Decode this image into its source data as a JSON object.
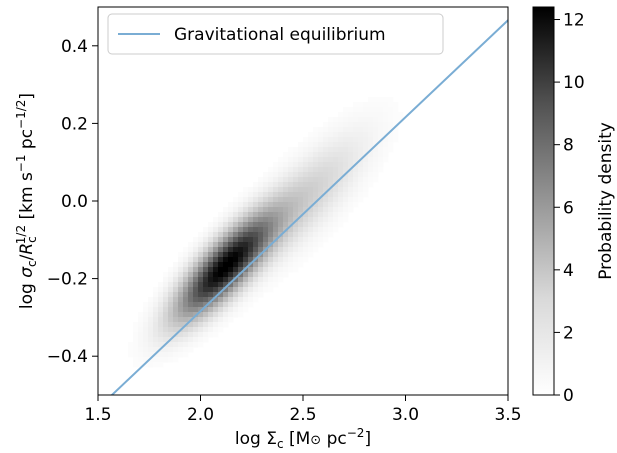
{
  "chart_data": {
    "type": "heatmap",
    "title": "",
    "xlabel": {
      "pre": "log Σ",
      "sub": "c",
      "mid": " [M",
      "odot": "⊙",
      "post": " pc",
      "sup": "−2",
      "end": "]"
    },
    "ylabel": {
      "pre": "log ",
      "sigma": "σ",
      "sub1": "c",
      "slash": "/",
      "R": "R",
      "sub2": "c",
      "sup2": "1/2",
      "mid": " [km s",
      "sup3": "−1",
      "pc": " pc",
      "sup4": "−1/2",
      "end": "]"
    },
    "xlim": [
      1.5,
      3.5
    ],
    "ylim": [
      -0.5,
      0.5
    ],
    "x_ticks": [
      1.5,
      2.0,
      2.5,
      3.0,
      3.5
    ],
    "x_tick_labels": [
      "1.5",
      "2.0",
      "2.5",
      "3.0",
      "3.5"
    ],
    "y_ticks": [
      -0.4,
      -0.2,
      0.0,
      0.2,
      0.4
    ],
    "y_tick_labels": [
      "−0.4",
      "−0.2",
      "0.0",
      "0.2",
      "0.4"
    ],
    "line": {
      "name": "Gravitational equilibrium",
      "color": "#7aadd4",
      "x": [
        1.5,
        3.5
      ],
      "y": [
        -0.534,
        0.466
      ]
    },
    "density": {
      "peak_x": 2.12,
      "peak_y": -0.17,
      "sigma_major": 0.17,
      "sigma_minor": 0.045,
      "tail_x": 2.5,
      "tail_y": 0.0,
      "max": 12.4,
      "colormap": "Greys"
    },
    "colorbar": {
      "label": "Probability density",
      "range": [
        0,
        12.4
      ],
      "ticks": [
        0,
        2,
        4,
        6,
        8,
        10,
        12
      ],
      "tick_labels": [
        "0",
        "2",
        "4",
        "6",
        "8",
        "10",
        "12"
      ]
    },
    "legend": {
      "entries": [
        "Gravitational equilibrium"
      ],
      "placement": "upper-left"
    }
  }
}
